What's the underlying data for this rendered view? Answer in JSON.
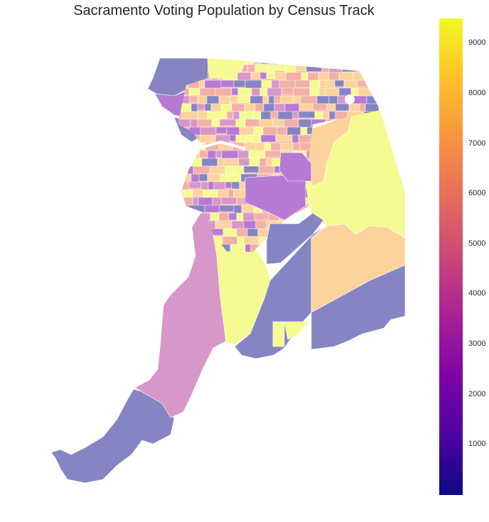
{
  "title": "Sacramento Voting Population by Census Track",
  "colorbar": {
    "min": 0,
    "max": 9500,
    "colormap": "plasma",
    "ticks": [
      "1000",
      "2000",
      "3000",
      "4000",
      "5000",
      "6000",
      "7000",
      "8000",
      "9000"
    ],
    "tick_values": [
      1000,
      2000,
      3000,
      4000,
      5000,
      6000,
      7000,
      8000,
      9000
    ]
  },
  "fill_palette": {
    "low": "#8685c4",
    "midlow": "#b67ad4",
    "mid": "#d797c8",
    "midhigh": "#f3b0a6",
    "high": "#fcd39c",
    "top": "#f5fb90"
  }
}
